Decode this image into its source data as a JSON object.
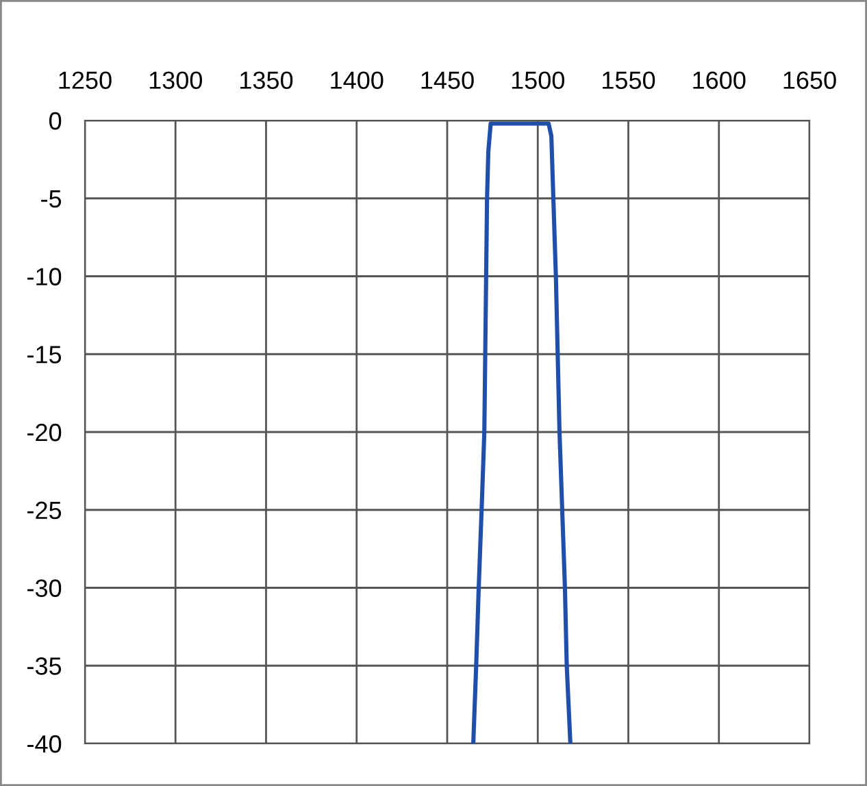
{
  "chart_data": {
    "type": "line",
    "x": [
      1464.4,
      1466,
      1467.4,
      1469,
      1470.5,
      1471.5,
      1472,
      1472.7,
      1474,
      1506,
      1507.5,
      1508.6,
      1510,
      1512,
      1515,
      1516,
      1518
    ],
    "series": [
      {
        "color": "#1f4faa",
        "values": [
          -40,
          -35,
          -30,
          -25,
          -20,
          -10,
          -5,
          -2,
          -0.2,
          -0.2,
          -1,
          -5,
          -10,
          -20,
          -30,
          -35,
          -40
        ]
      }
    ],
    "xlim": [
      1250,
      1650
    ],
    "xticks": [
      1250,
      1300,
      1350,
      1400,
      1450,
      1500,
      1550,
      1600,
      1650
    ],
    "ylim": [
      -40,
      0
    ],
    "yticks": [
      0,
      -5,
      -10,
      -15,
      -20,
      -25,
      -30,
      -35,
      -40
    ],
    "grid": true,
    "legend": false,
    "marker": "none",
    "line_style": "solid"
  }
}
